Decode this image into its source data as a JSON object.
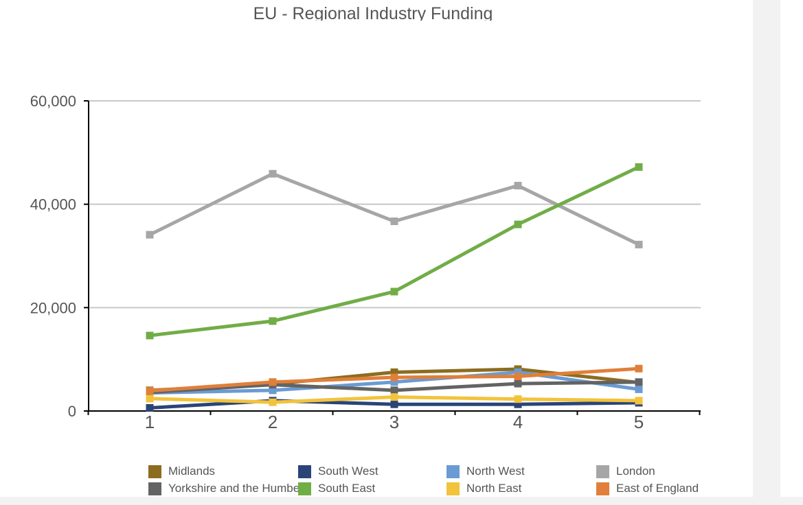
{
  "chart_data": {
    "type": "line",
    "title": "EU - Regional Industry Funding",
    "xlabel": "",
    "ylabel": "",
    "x": [
      "1",
      "2",
      "3",
      "4",
      "5"
    ],
    "ylim": [
      0,
      60000
    ],
    "yticks": [
      "0",
      "20,000",
      "40,000",
      "60,000"
    ],
    "grid": true,
    "legend_position": "bottom",
    "series": [
      {
        "name": "Midlands",
        "color": "#8c6d1f",
        "values": [
          4000,
          5200,
          7500,
          8100,
          5500
        ]
      },
      {
        "name": "South West",
        "color": "#2a4478",
        "values": [
          600,
          2000,
          1300,
          1300,
          1600
        ]
      },
      {
        "name": "North West",
        "color": "#6a9bd3",
        "values": [
          3500,
          4000,
          5600,
          7500,
          4200
        ]
      },
      {
        "name": "London",
        "color": "#a6a6a6",
        "values": [
          34100,
          45900,
          36700,
          43600,
          32200
        ]
      },
      {
        "name": "Yorkshire and the Humber",
        "color": "#636363",
        "values": [
          3600,
          5100,
          4000,
          5300,
          5600
        ]
      },
      {
        "name": "South East",
        "color": "#71ad47",
        "values": [
          14600,
          17400,
          23100,
          36100,
          47200
        ]
      },
      {
        "name": "North East",
        "color": "#f2c33c",
        "values": [
          2400,
          1700,
          2700,
          2300,
          2000
        ]
      },
      {
        "name": "East of England",
        "color": "#e07f3a",
        "values": [
          3900,
          5600,
          6500,
          6700,
          8200
        ]
      }
    ]
  }
}
